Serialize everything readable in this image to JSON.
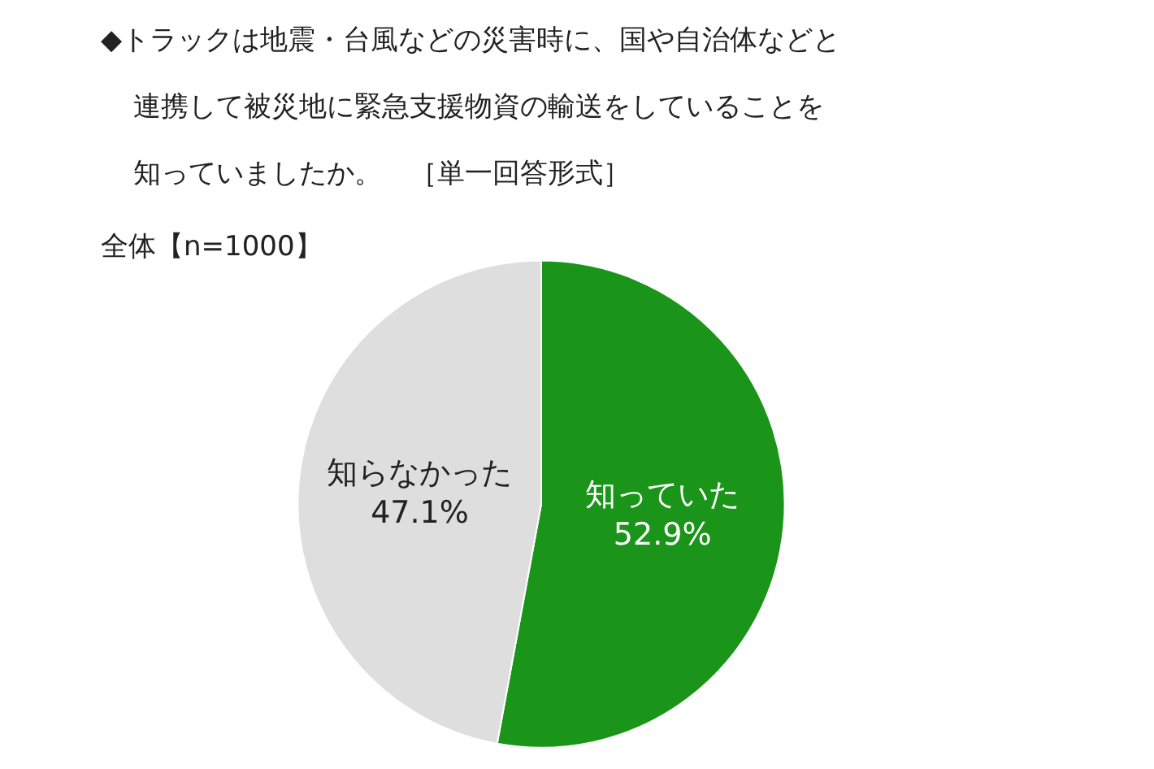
{
  "chart_data": {
    "type": "pie",
    "title": "◆トラックは地震・台風などの災害時に、国や自治体などと連携して被災地に緊急支援物資の輸送をしていることを知っていましたか。　［単一回答形式］",
    "subtitle": "全体【n=1000】",
    "categories": [
      "知っていた",
      "知らなかった"
    ],
    "values": [
      52.9,
      47.1
    ],
    "value_labels": [
      "52.9%",
      "47.1%"
    ],
    "colors": [
      "#1a951a",
      "#dedede"
    ],
    "legend": false
  }
}
